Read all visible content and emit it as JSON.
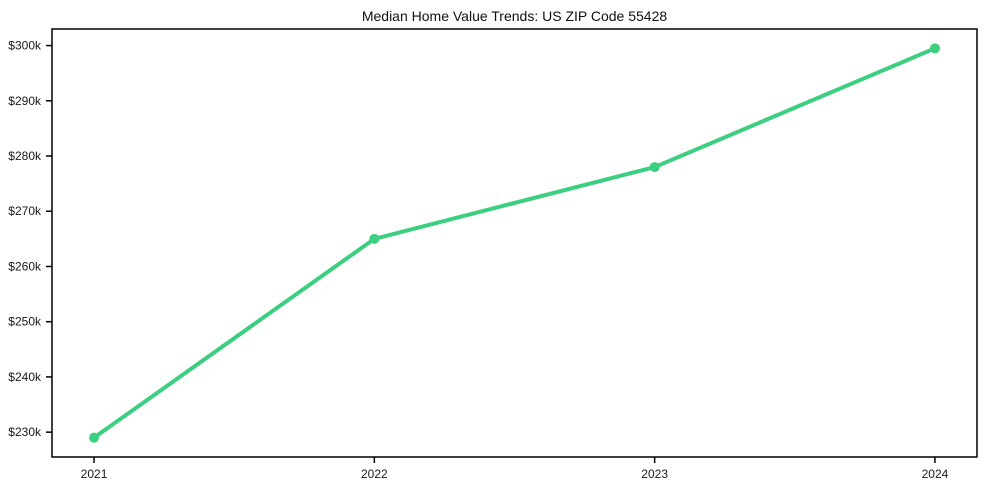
{
  "title": "Median Home Value Trends: US ZIP Code 55428",
  "chart_data": {
    "type": "line",
    "x": [
      2021,
      2022,
      2023,
      2024
    ],
    "categories": [
      "2021",
      "2022",
      "2023",
      "2024"
    ],
    "series": [
      {
        "name": "Median Home Value",
        "values": [
          229000,
          265000,
          278000,
          299500
        ],
        "color": "#3bcf7f",
        "marker": "circle",
        "line_width": 4,
        "marker_radius": 5
      }
    ],
    "title": "Median Home Value Trends: US ZIP Code 55428",
    "xlabel": "",
    "ylabel": "",
    "xlim": [
      2020.85,
      2024.15
    ],
    "ylim": [
      225500,
      303000
    ],
    "yticks": [
      230000,
      240000,
      250000,
      260000,
      270000,
      280000,
      290000,
      300000
    ],
    "ytick_labels": [
      "$230k",
      "$240k",
      "$250k",
      "$260k",
      "$270k",
      "$280k",
      "$290k",
      "$300k"
    ],
    "xtick_labels": [
      "2021",
      "2022",
      "2023",
      "2024"
    ],
    "grid": false,
    "legend": "none",
    "background_color": "#ffffff",
    "axis_color": "#000000",
    "text_color": "#1a1a1a"
  }
}
